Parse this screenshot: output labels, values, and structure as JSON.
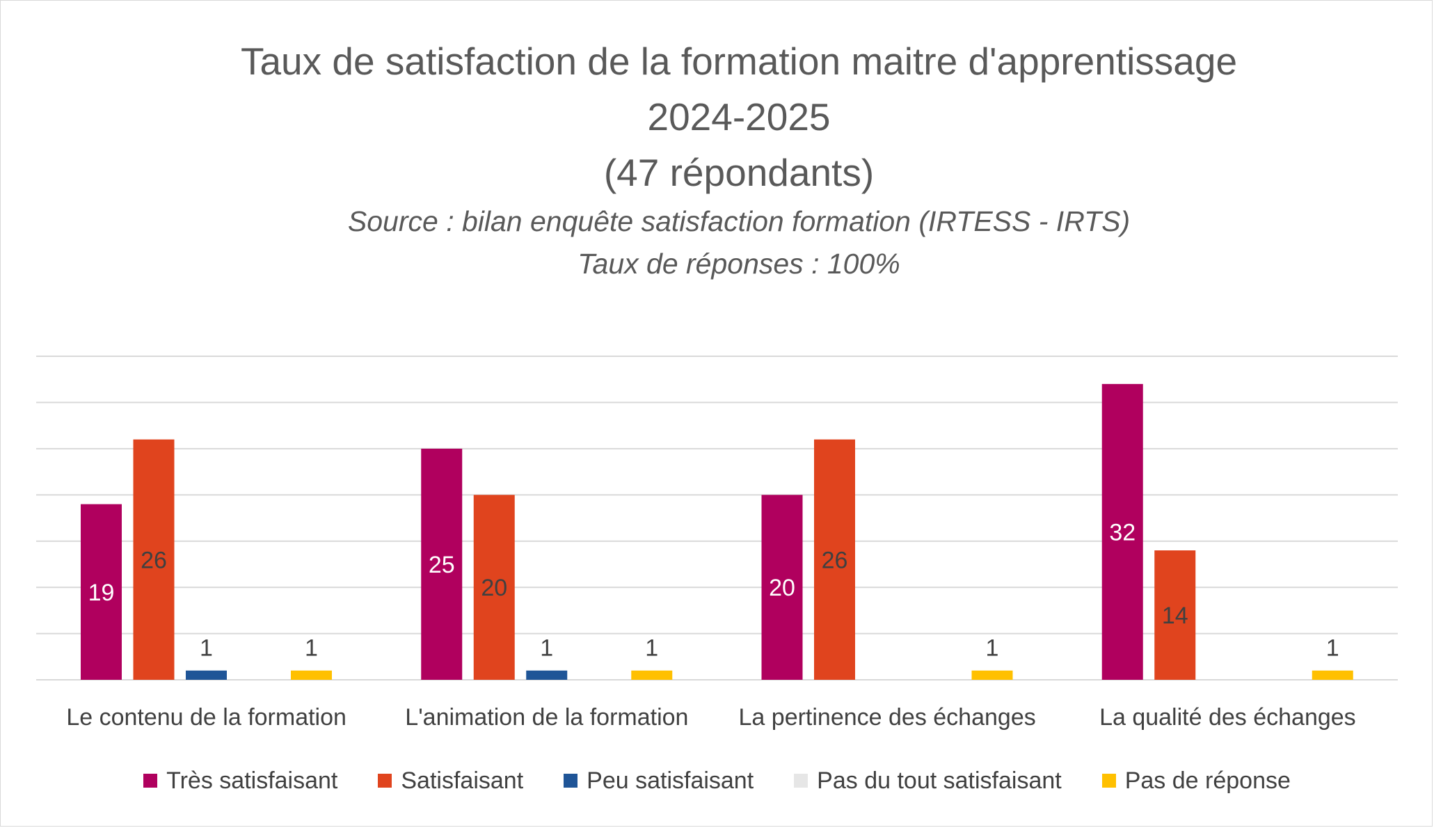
{
  "chart_data": {
    "type": "bar",
    "title": "Taux de satisfaction de la formation maitre d'apprentissage",
    "title_year": "2024-2025",
    "title_respondents": "(47 répondants)",
    "subtitle_source": "Source : bilan enquête satisfaction formation (IRTESS - IRTS)",
    "subtitle_rate": "Taux de réponses : 100%",
    "categories": [
      "Le contenu de la formation",
      "L'animation de la formation",
      "La pertinence des échanges",
      "La qualité des échanges"
    ],
    "series": [
      {
        "name": "Très satisfaisant",
        "color": "#b0005e",
        "label_color": "#ffffff",
        "values": [
          19,
          25,
          20,
          32
        ]
      },
      {
        "name": "Satisfaisant",
        "color": "#e0441e",
        "label_color": "#404040",
        "values": [
          26,
          20,
          26,
          14
        ]
      },
      {
        "name": "Peu satisfaisant",
        "color": "#1f5597",
        "label_color": "#404040",
        "values": [
          1,
          1,
          null,
          null
        ]
      },
      {
        "name": "Pas du tout satisfaisant",
        "color": "#e6e6e6",
        "label_color": "#404040",
        "values": [
          null,
          null,
          null,
          null
        ]
      },
      {
        "name": "Pas de réponse",
        "color": "#ffc000",
        "label_color": "#404040",
        "values": [
          1,
          1,
          1,
          1
        ]
      }
    ],
    "ylim": [
      0,
      35
    ],
    "y_gridline_step": 5,
    "legend_position": "bottom",
    "grid": true
  }
}
